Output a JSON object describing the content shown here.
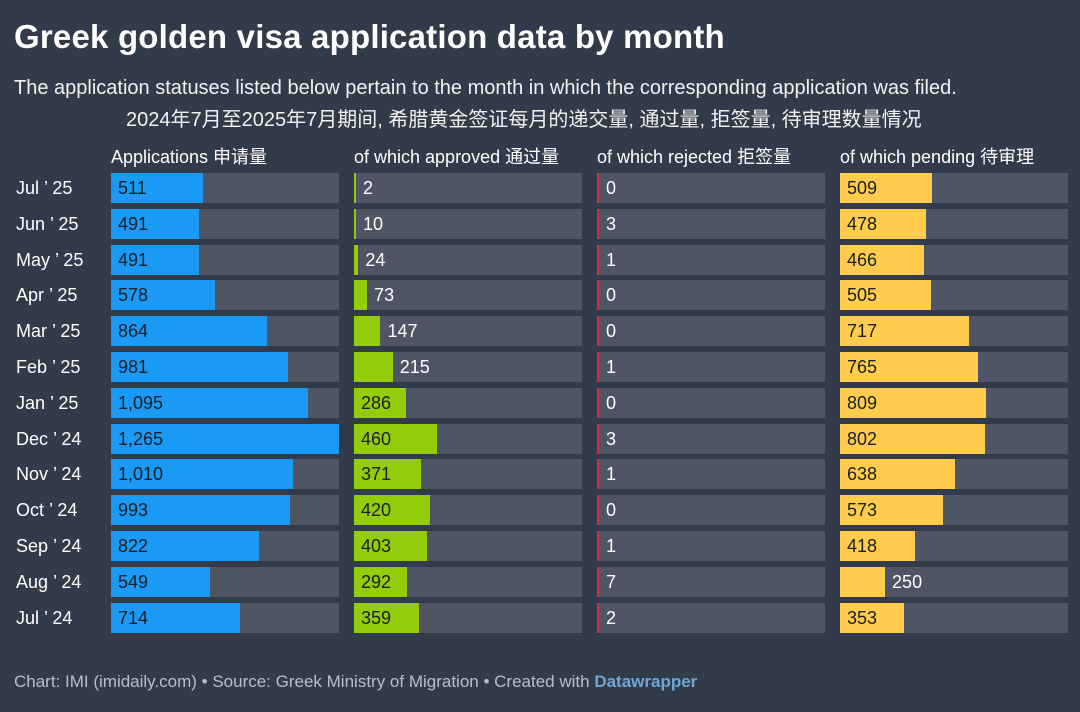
{
  "title": "Greek golden visa application data by month",
  "subtitle": "The application statuses listed below pertain to the month in which the corresponding application was filed.",
  "subtitle_cn": "2024年7月至2025年7月期间, 希腊黄金签证每月的递交量, 通过量, 拒签量, 待审理数量情况",
  "footer": {
    "prefix": "Chart: IMI (imidaily.com) • Source: Greek Ministry of Migration • Created with ",
    "brand": "Datawrapper"
  },
  "colors": {
    "applications": "#1a9af5",
    "approved": "#93cc0a",
    "rejected": "#c9343d",
    "pending": "#ffcc4d"
  },
  "chart_data": {
    "type": "bar",
    "orientation": "horizontal",
    "categories": [
      "Jul ’ 25",
      "Jun ’ 25",
      "May ’ 25",
      "Apr ’ 25",
      "Mar ’ 25",
      "Feb ’ 25",
      "Jan ’ 25",
      "Dec ’ 24",
      "Nov ’ 24",
      "Oct ’ 24",
      "Sep ’ 24",
      "Aug ’ 24",
      "Jul ’ 24"
    ],
    "series": [
      {
        "key": "applications",
        "name": "Applications 申请量",
        "max": 1265,
        "values": [
          511,
          491,
          491,
          578,
          864,
          981,
          1095,
          1265,
          1010,
          993,
          822,
          549,
          714
        ],
        "labels": [
          "511",
          "491",
          "491",
          "578",
          "864",
          "981",
          "1,095",
          "1,265",
          "1,010",
          "993",
          "822",
          "549",
          "714"
        ]
      },
      {
        "key": "approved",
        "name": "of which approved 通过量",
        "max": 1265,
        "values": [
          2,
          10,
          24,
          73,
          147,
          215,
          286,
          460,
          371,
          420,
          403,
          292,
          359
        ],
        "labels": [
          "2",
          "10",
          "24",
          "73",
          "147",
          "215",
          "286",
          "460",
          "371",
          "420",
          "403",
          "292",
          "359"
        ]
      },
      {
        "key": "rejected",
        "name": "of which rejected 拒签量",
        "max": 1265,
        "values": [
          0,
          3,
          1,
          0,
          0,
          1,
          0,
          3,
          1,
          0,
          1,
          7,
          2
        ],
        "labels": [
          "0",
          "3",
          "1",
          "0",
          "0",
          "1",
          "0",
          "3",
          "1",
          "0",
          "1",
          "7",
          "2"
        ]
      },
      {
        "key": "pending",
        "name": "of which pending 待审理",
        "max": 1265,
        "values": [
          509,
          478,
          466,
          505,
          717,
          765,
          809,
          802,
          638,
          573,
          418,
          250,
          353
        ],
        "labels": [
          "509",
          "478",
          "466",
          "505",
          "717",
          "765",
          "809",
          "802",
          "638",
          "573",
          "418",
          "250",
          "353"
        ]
      }
    ]
  }
}
